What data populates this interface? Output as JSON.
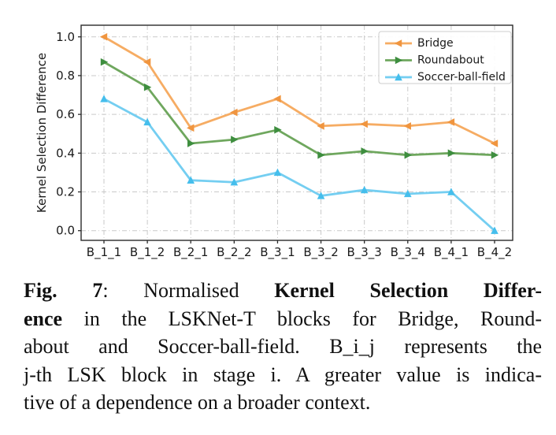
{
  "figure": {
    "caption_lines": [
      {
        "segments": [
          {
            "text": "Fig. 7",
            "bold": true
          },
          {
            "text": ": Normalised ",
            "bold": false
          },
          {
            "text": "Kernel Selection Differ-",
            "bold": true
          }
        ]
      },
      {
        "segments": [
          {
            "text": "ence",
            "bold": true
          },
          {
            "text": " in the LSKNet-T blocks for Bridge, Round-",
            "bold": false
          }
        ]
      },
      {
        "segments": [
          {
            "text": "about and Soccer-ball-field. B_i_j represents the",
            "bold": false
          }
        ]
      },
      {
        "segments": [
          {
            "text": "j-th LSK block in stage i. A greater value is indica-",
            "bold": false
          }
        ]
      },
      {
        "segments": [
          {
            "text": "tive of a dependence on a broader context.",
            "bold": false
          }
        ]
      }
    ]
  },
  "chart_data": {
    "type": "line",
    "title": "",
    "xlabel": "",
    "ylabel": "Kernel Selection Difference",
    "categories": [
      "B_1_1",
      "B_1_2",
      "B_2_1",
      "B_2_2",
      "B_3_1",
      "B_3_2",
      "B_3_3",
      "B_3_4",
      "B_4_1",
      "B_4_2"
    ],
    "series": [
      {
        "name": "Bridge",
        "marker": "left-triangle",
        "line_color": "#F6AC63",
        "marker_color": "#F0953F",
        "values": [
          1.0,
          0.87,
          0.53,
          0.61,
          0.68,
          0.54,
          0.55,
          0.54,
          0.56,
          0.45
        ]
      },
      {
        "name": "Roundabout",
        "marker": "right-triangle",
        "line_color": "#6FA75E",
        "marker_color": "#3E8E3F",
        "values": [
          0.87,
          0.74,
          0.45,
          0.47,
          0.52,
          0.39,
          0.41,
          0.39,
          0.4,
          0.39
        ]
      },
      {
        "name": "Soccer-ball-field",
        "marker": "up-triangle",
        "line_color": "#74CEF1",
        "marker_color": "#45BEEC",
        "values": [
          0.68,
          0.56,
          0.26,
          0.25,
          0.3,
          0.18,
          0.21,
          0.19,
          0.2,
          0.0
        ]
      }
    ],
    "yticks": [
      0.0,
      0.2,
      0.4,
      0.6,
      0.8,
      1.0
    ],
    "ylim": [
      -0.05,
      1.06
    ],
    "grid": true,
    "grid_style": "dash-dot",
    "legend_position": "upper-right",
    "colors": {
      "grid": "#C9C9C9",
      "axis": "#2B2B2B",
      "tick_text": "#1A1A1A",
      "legend_border": "#CCCCCC",
      "legend_bg": "#FFFFFF"
    }
  }
}
